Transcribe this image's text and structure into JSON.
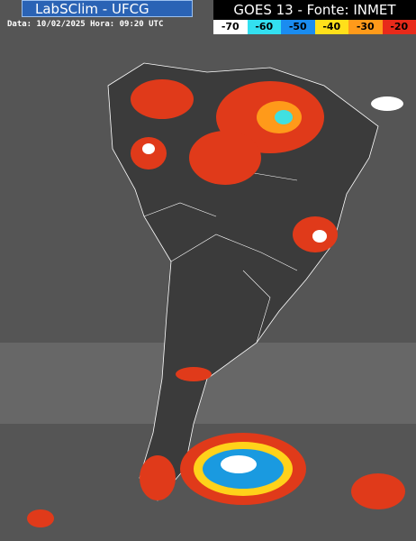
{
  "header": {
    "logo": "LabSClim - UFCG",
    "timestamp": "Data: 10/02/2025 Hora: 09:20 UTC",
    "source": "GOES 13 - Fonte: INMET"
  },
  "legend": {
    "items": [
      {
        "value": -70,
        "color": "#ffffff"
      },
      {
        "value": -60,
        "color": "#33e0f0"
      },
      {
        "value": -50,
        "color": "#1a8cf0"
      },
      {
        "value": -40,
        "color": "#ffe01a"
      },
      {
        "value": -30,
        "color": "#ff9a1a"
      },
      {
        "value": -20,
        "color": "#e82a1a"
      }
    ]
  }
}
